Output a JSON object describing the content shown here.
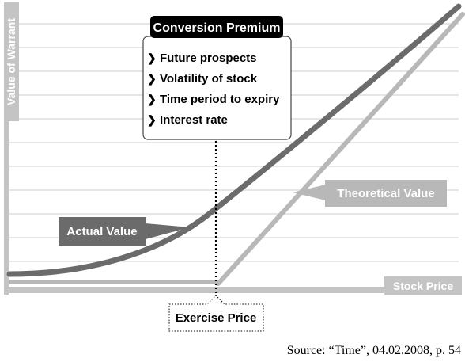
{
  "y_axis_label": "Value of Warrant",
  "x_axis_label": "Stock Price",
  "premium_box": {
    "title": "Conversion Premium",
    "bullet_glyph": "❯",
    "items": [
      "Future prospects",
      "Volatility of stock",
      "Time period to expiry",
      "Interest rate"
    ]
  },
  "actual_value_label": "Actual Value",
  "theoretical_value_label": "Theoretical Value",
  "exercise_price_label": "Exercise Price",
  "source": "Source: “Time”, 04.02.2008, p. 54",
  "colors": {
    "grid": "#dedede",
    "axis": "#c4c4c4",
    "actual_curve": "#6b6b6b",
    "theoretical_line": "#b8b8b8",
    "actual_label_bg": "#6b6b6b",
    "theoretical_label_bg": "#b8b8b8",
    "premium_title_bg": "#000000",
    "dotted_line": "#000000"
  }
}
